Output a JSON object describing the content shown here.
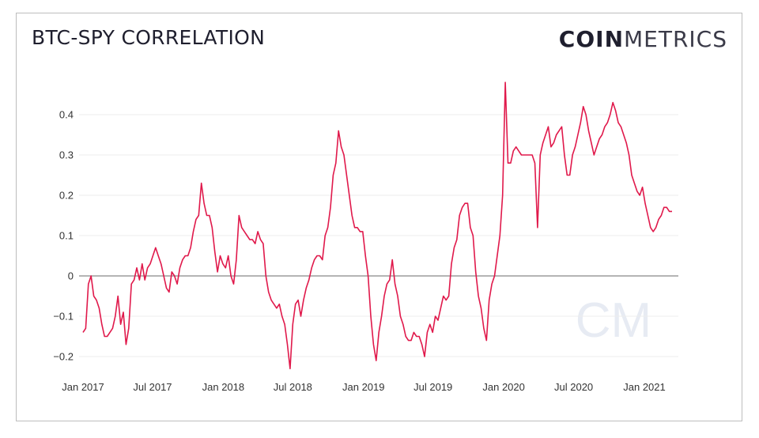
{
  "header": {
    "title": "BTC-SPY CORRELATION",
    "logo_bold": "COIN",
    "logo_light": "METRICS",
    "watermark": "CM"
  },
  "chart_data": {
    "type": "line",
    "title": "BTC-SPY CORRELATION",
    "xlabel": "",
    "ylabel": "",
    "ylim": [
      -0.24,
      0.48
    ],
    "grid": true,
    "line_color": "#e0194b",
    "zero_line_color": "#888888",
    "x_tick_labels": [
      "Jan 2017",
      "Jul 2017",
      "Jan 2018",
      "Jul 2018",
      "Jan 2019",
      "Jul 2019",
      "Jan 2020",
      "Jul 2020",
      "Jan 2021"
    ],
    "x_tick_dates": [
      "2017-01-01",
      "2017-07-01",
      "2018-01-01",
      "2018-07-01",
      "2019-01-01",
      "2019-07-01",
      "2020-01-01",
      "2020-07-01",
      "2021-01-01"
    ],
    "y_ticks": [
      -0.2,
      -0.1,
      0,
      0.1,
      0.2,
      0.3,
      0.4
    ],
    "y_tick_labels": [
      "−0.2",
      "−0.1",
      "0",
      "0.1",
      "0.2",
      "0.3",
      "0.4"
    ],
    "series": [
      {
        "values": [
          [
            "2017-01-01",
            -0.14
          ],
          [
            "2017-01-08",
            -0.13
          ],
          [
            "2017-01-15",
            -0.02
          ],
          [
            "2017-01-22",
            0.0
          ],
          [
            "2017-01-29",
            -0.05
          ],
          [
            "2017-02-05",
            -0.06
          ],
          [
            "2017-02-12",
            -0.08
          ],
          [
            "2017-02-19",
            -0.12
          ],
          [
            "2017-02-26",
            -0.15
          ],
          [
            "2017-03-05",
            -0.15
          ],
          [
            "2017-03-12",
            -0.14
          ],
          [
            "2017-03-19",
            -0.13
          ],
          [
            "2017-03-26",
            -0.1
          ],
          [
            "2017-04-02",
            -0.05
          ],
          [
            "2017-04-09",
            -0.12
          ],
          [
            "2017-04-16",
            -0.09
          ],
          [
            "2017-04-23",
            -0.17
          ],
          [
            "2017-04-30",
            -0.13
          ],
          [
            "2017-05-07",
            -0.02
          ],
          [
            "2017-05-14",
            -0.01
          ],
          [
            "2017-05-21",
            0.02
          ],
          [
            "2017-05-28",
            -0.01
          ],
          [
            "2017-06-04",
            0.03
          ],
          [
            "2017-06-11",
            -0.01
          ],
          [
            "2017-06-18",
            0.02
          ],
          [
            "2017-06-25",
            0.03
          ],
          [
            "2017-07-02",
            0.05
          ],
          [
            "2017-07-09",
            0.07
          ],
          [
            "2017-07-16",
            0.05
          ],
          [
            "2017-07-23",
            0.03
          ],
          [
            "2017-07-30",
            0.0
          ],
          [
            "2017-08-06",
            -0.03
          ],
          [
            "2017-08-13",
            -0.04
          ],
          [
            "2017-08-20",
            0.01
          ],
          [
            "2017-08-27",
            0.0
          ],
          [
            "2017-09-03",
            -0.02
          ],
          [
            "2017-09-10",
            0.02
          ],
          [
            "2017-09-17",
            0.04
          ],
          [
            "2017-09-24",
            0.05
          ],
          [
            "2017-10-01",
            0.05
          ],
          [
            "2017-10-08",
            0.07
          ],
          [
            "2017-10-15",
            0.11
          ],
          [
            "2017-10-22",
            0.14
          ],
          [
            "2017-10-29",
            0.15
          ],
          [
            "2017-11-05",
            0.23
          ],
          [
            "2017-11-12",
            0.18
          ],
          [
            "2017-11-19",
            0.15
          ],
          [
            "2017-11-26",
            0.15
          ],
          [
            "2017-12-03",
            0.12
          ],
          [
            "2017-12-10",
            0.06
          ],
          [
            "2017-12-17",
            0.01
          ],
          [
            "2017-12-24",
            0.05
          ],
          [
            "2017-12-31",
            0.03
          ],
          [
            "2018-01-07",
            0.02
          ],
          [
            "2018-01-14",
            0.05
          ],
          [
            "2018-01-21",
            0.0
          ],
          [
            "2018-01-28",
            -0.02
          ],
          [
            "2018-02-04",
            0.04
          ],
          [
            "2018-02-11",
            0.15
          ],
          [
            "2018-02-18",
            0.12
          ],
          [
            "2018-02-25",
            0.11
          ],
          [
            "2018-03-04",
            0.1
          ],
          [
            "2018-03-11",
            0.09
          ],
          [
            "2018-03-18",
            0.09
          ],
          [
            "2018-03-25",
            0.08
          ],
          [
            "2018-04-01",
            0.11
          ],
          [
            "2018-04-08",
            0.09
          ],
          [
            "2018-04-15",
            0.08
          ],
          [
            "2018-04-22",
            0.0
          ],
          [
            "2018-04-29",
            -0.04
          ],
          [
            "2018-05-06",
            -0.06
          ],
          [
            "2018-05-13",
            -0.07
          ],
          [
            "2018-05-20",
            -0.08
          ],
          [
            "2018-05-27",
            -0.07
          ],
          [
            "2018-06-03",
            -0.1
          ],
          [
            "2018-06-10",
            -0.12
          ],
          [
            "2018-06-17",
            -0.17
          ],
          [
            "2018-06-24",
            -0.23
          ],
          [
            "2018-07-01",
            -0.12
          ],
          [
            "2018-07-08",
            -0.07
          ],
          [
            "2018-07-15",
            -0.06
          ],
          [
            "2018-07-22",
            -0.1
          ],
          [
            "2018-07-29",
            -0.06
          ],
          [
            "2018-08-05",
            -0.03
          ],
          [
            "2018-08-12",
            -0.01
          ],
          [
            "2018-08-19",
            0.02
          ],
          [
            "2018-08-26",
            0.04
          ],
          [
            "2018-09-02",
            0.05
          ],
          [
            "2018-09-09",
            0.05
          ],
          [
            "2018-09-16",
            0.04
          ],
          [
            "2018-09-23",
            0.1
          ],
          [
            "2018-09-30",
            0.12
          ],
          [
            "2018-10-07",
            0.17
          ],
          [
            "2018-10-14",
            0.25
          ],
          [
            "2018-10-21",
            0.28
          ],
          [
            "2018-10-28",
            0.36
          ],
          [
            "2018-11-04",
            0.32
          ],
          [
            "2018-11-11",
            0.3
          ],
          [
            "2018-11-18",
            0.25
          ],
          [
            "2018-11-25",
            0.2
          ],
          [
            "2018-12-02",
            0.15
          ],
          [
            "2018-12-09",
            0.12
          ],
          [
            "2018-12-16",
            0.12
          ],
          [
            "2018-12-23",
            0.11
          ],
          [
            "2018-12-30",
            0.11
          ],
          [
            "2019-01-06",
            0.05
          ],
          [
            "2019-01-13",
            0.0
          ],
          [
            "2019-01-20",
            -0.1
          ],
          [
            "2019-01-27",
            -0.17
          ],
          [
            "2019-02-03",
            -0.21
          ],
          [
            "2019-02-10",
            -0.14
          ],
          [
            "2019-02-17",
            -0.1
          ],
          [
            "2019-02-24",
            -0.05
          ],
          [
            "2019-03-03",
            -0.02
          ],
          [
            "2019-03-10",
            -0.01
          ],
          [
            "2019-03-17",
            0.04
          ],
          [
            "2019-03-24",
            -0.02
          ],
          [
            "2019-03-31",
            -0.05
          ],
          [
            "2019-04-07",
            -0.1
          ],
          [
            "2019-04-14",
            -0.12
          ],
          [
            "2019-04-21",
            -0.15
          ],
          [
            "2019-04-28",
            -0.16
          ],
          [
            "2019-05-05",
            -0.16
          ],
          [
            "2019-05-12",
            -0.14
          ],
          [
            "2019-05-19",
            -0.15
          ],
          [
            "2019-05-26",
            -0.15
          ],
          [
            "2019-06-02",
            -0.17
          ],
          [
            "2019-06-09",
            -0.2
          ],
          [
            "2019-06-16",
            -0.14
          ],
          [
            "2019-06-23",
            -0.12
          ],
          [
            "2019-06-30",
            -0.14
          ],
          [
            "2019-07-07",
            -0.1
          ],
          [
            "2019-07-14",
            -0.11
          ],
          [
            "2019-07-21",
            -0.08
          ],
          [
            "2019-07-28",
            -0.05
          ],
          [
            "2019-08-04",
            -0.06
          ],
          [
            "2019-08-11",
            -0.05
          ],
          [
            "2019-08-18",
            0.03
          ],
          [
            "2019-08-25",
            0.07
          ],
          [
            "2019-09-01",
            0.09
          ],
          [
            "2019-09-08",
            0.15
          ],
          [
            "2019-09-15",
            0.17
          ],
          [
            "2019-09-22",
            0.18
          ],
          [
            "2019-09-29",
            0.18
          ],
          [
            "2019-10-06",
            0.12
          ],
          [
            "2019-10-13",
            0.1
          ],
          [
            "2019-10-20",
            0.01
          ],
          [
            "2019-10-27",
            -0.05
          ],
          [
            "2019-11-03",
            -0.08
          ],
          [
            "2019-11-10",
            -0.13
          ],
          [
            "2019-11-17",
            -0.16
          ],
          [
            "2019-11-24",
            -0.06
          ],
          [
            "2019-12-01",
            -0.02
          ],
          [
            "2019-12-08",
            0.0
          ],
          [
            "2019-12-15",
            0.05
          ],
          [
            "2019-12-22",
            0.1
          ],
          [
            "2019-12-29",
            0.2
          ],
          [
            "2020-01-05",
            0.48
          ],
          [
            "2020-01-12",
            0.28
          ],
          [
            "2020-01-19",
            0.28
          ],
          [
            "2020-01-26",
            0.31
          ],
          [
            "2020-02-02",
            0.32
          ],
          [
            "2020-02-09",
            0.31
          ],
          [
            "2020-02-16",
            0.3
          ],
          [
            "2020-02-23",
            0.3
          ],
          [
            "2020-03-01",
            0.3
          ],
          [
            "2020-03-08",
            0.3
          ],
          [
            "2020-03-15",
            0.3
          ],
          [
            "2020-03-22",
            0.28
          ],
          [
            "2020-03-29",
            0.12
          ],
          [
            "2020-04-05",
            0.3
          ],
          [
            "2020-04-12",
            0.33
          ],
          [
            "2020-04-19",
            0.35
          ],
          [
            "2020-04-26",
            0.37
          ],
          [
            "2020-05-03",
            0.32
          ],
          [
            "2020-05-10",
            0.33
          ],
          [
            "2020-05-17",
            0.35
          ],
          [
            "2020-05-24",
            0.36
          ],
          [
            "2020-05-31",
            0.37
          ],
          [
            "2020-06-07",
            0.3
          ],
          [
            "2020-06-14",
            0.25
          ],
          [
            "2020-06-21",
            0.25
          ],
          [
            "2020-06-28",
            0.3
          ],
          [
            "2020-07-05",
            0.32
          ],
          [
            "2020-07-12",
            0.35
          ],
          [
            "2020-07-19",
            0.38
          ],
          [
            "2020-07-26",
            0.42
          ],
          [
            "2020-08-02",
            0.4
          ],
          [
            "2020-08-09",
            0.36
          ],
          [
            "2020-08-16",
            0.33
          ],
          [
            "2020-08-23",
            0.3
          ],
          [
            "2020-08-30",
            0.32
          ],
          [
            "2020-09-06",
            0.34
          ],
          [
            "2020-09-13",
            0.35
          ],
          [
            "2020-09-20",
            0.37
          ],
          [
            "2020-09-27",
            0.38
          ],
          [
            "2020-10-04",
            0.4
          ],
          [
            "2020-10-11",
            0.43
          ],
          [
            "2020-10-18",
            0.41
          ],
          [
            "2020-10-25",
            0.38
          ],
          [
            "2020-11-01",
            0.37
          ],
          [
            "2020-11-08",
            0.35
          ],
          [
            "2020-11-15",
            0.33
          ],
          [
            "2020-11-22",
            0.3
          ],
          [
            "2020-11-29",
            0.25
          ],
          [
            "2020-12-06",
            0.23
          ],
          [
            "2020-12-13",
            0.21
          ],
          [
            "2020-12-20",
            0.2
          ],
          [
            "2020-12-27",
            0.22
          ],
          [
            "2021-01-03",
            0.18
          ],
          [
            "2021-01-10",
            0.15
          ],
          [
            "2021-01-17",
            0.12
          ],
          [
            "2021-01-24",
            0.11
          ],
          [
            "2021-01-31",
            0.12
          ],
          [
            "2021-02-07",
            0.14
          ],
          [
            "2021-02-14",
            0.15
          ],
          [
            "2021-02-21",
            0.17
          ],
          [
            "2021-02-28",
            0.17
          ],
          [
            "2021-03-07",
            0.16
          ],
          [
            "2021-03-14",
            0.16
          ]
        ]
      }
    ]
  }
}
